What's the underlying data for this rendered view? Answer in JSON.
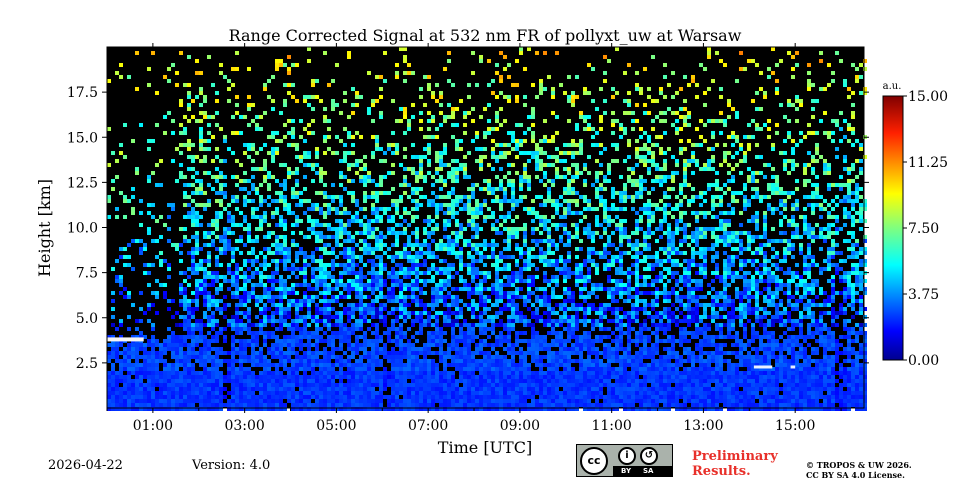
{
  "chart_data": {
    "type": "heatmap",
    "title": "Range Corrected Signal at 532 nm FR of pollyxt_uw at Warsaw",
    "xlabel": "Time [UTC]",
    "ylabel": "Height [km]",
    "xlim": [
      0.0,
      16.5
    ],
    "ylim": [
      0.0,
      20.0
    ],
    "x_ticks": [
      1,
      3,
      5,
      7,
      9,
      11,
      13,
      15
    ],
    "x_tick_labels": [
      "01:00",
      "03:00",
      "05:00",
      "07:00",
      "09:00",
      "11:00",
      "13:00",
      "15:00"
    ],
    "y_ticks": [
      2.5,
      5.0,
      7.5,
      10.0,
      12.5,
      15.0,
      17.5
    ],
    "y_tick_labels": [
      "2.5",
      "5.0",
      "7.5",
      "10.0",
      "12.5",
      "15.0",
      "17.5"
    ],
    "colorbar": {
      "unit": "a.u.",
      "range": [
        0.0,
        15.0
      ],
      "ticks": [
        0.0,
        3.75,
        7.5,
        11.25,
        15.0
      ],
      "tick_labels": [
        "0.00",
        "3.75",
        "7.50",
        "11.25",
        "15.00"
      ],
      "colormap": "jet"
    },
    "features": {
      "boundary_layer_top_km": 2.0,
      "low_cloud": {
        "time_range": [
          0.0,
          0.8
        ],
        "height_km": 3.8
      },
      "cloud_segments": [
        {
          "time_range": [
            14.1,
            14.5
          ],
          "height_km": 2.3
        },
        {
          "time_range": [
            14.9,
            15.0
          ],
          "height_km": 2.3
        }
      ],
      "signal_gaps_hours": [
        2.6,
        6.1,
        16.0
      ]
    }
  },
  "footer": {
    "date": "2026-04-22",
    "version": "Version: 4.0",
    "preliminary_line1": "Preliminary",
    "preliminary_line2": "Results.",
    "copyright_line1": "© TROPOS & UW 2026.",
    "copyright_line2": "CC BY SA 4.0 License.",
    "license_badge": {
      "cc": "cc",
      "by": "BY",
      "sa": "SA"
    }
  },
  "colors": {
    "background": "#000000",
    "low_signal": "#0a3cd2",
    "prelim_text": "#e8302a"
  }
}
